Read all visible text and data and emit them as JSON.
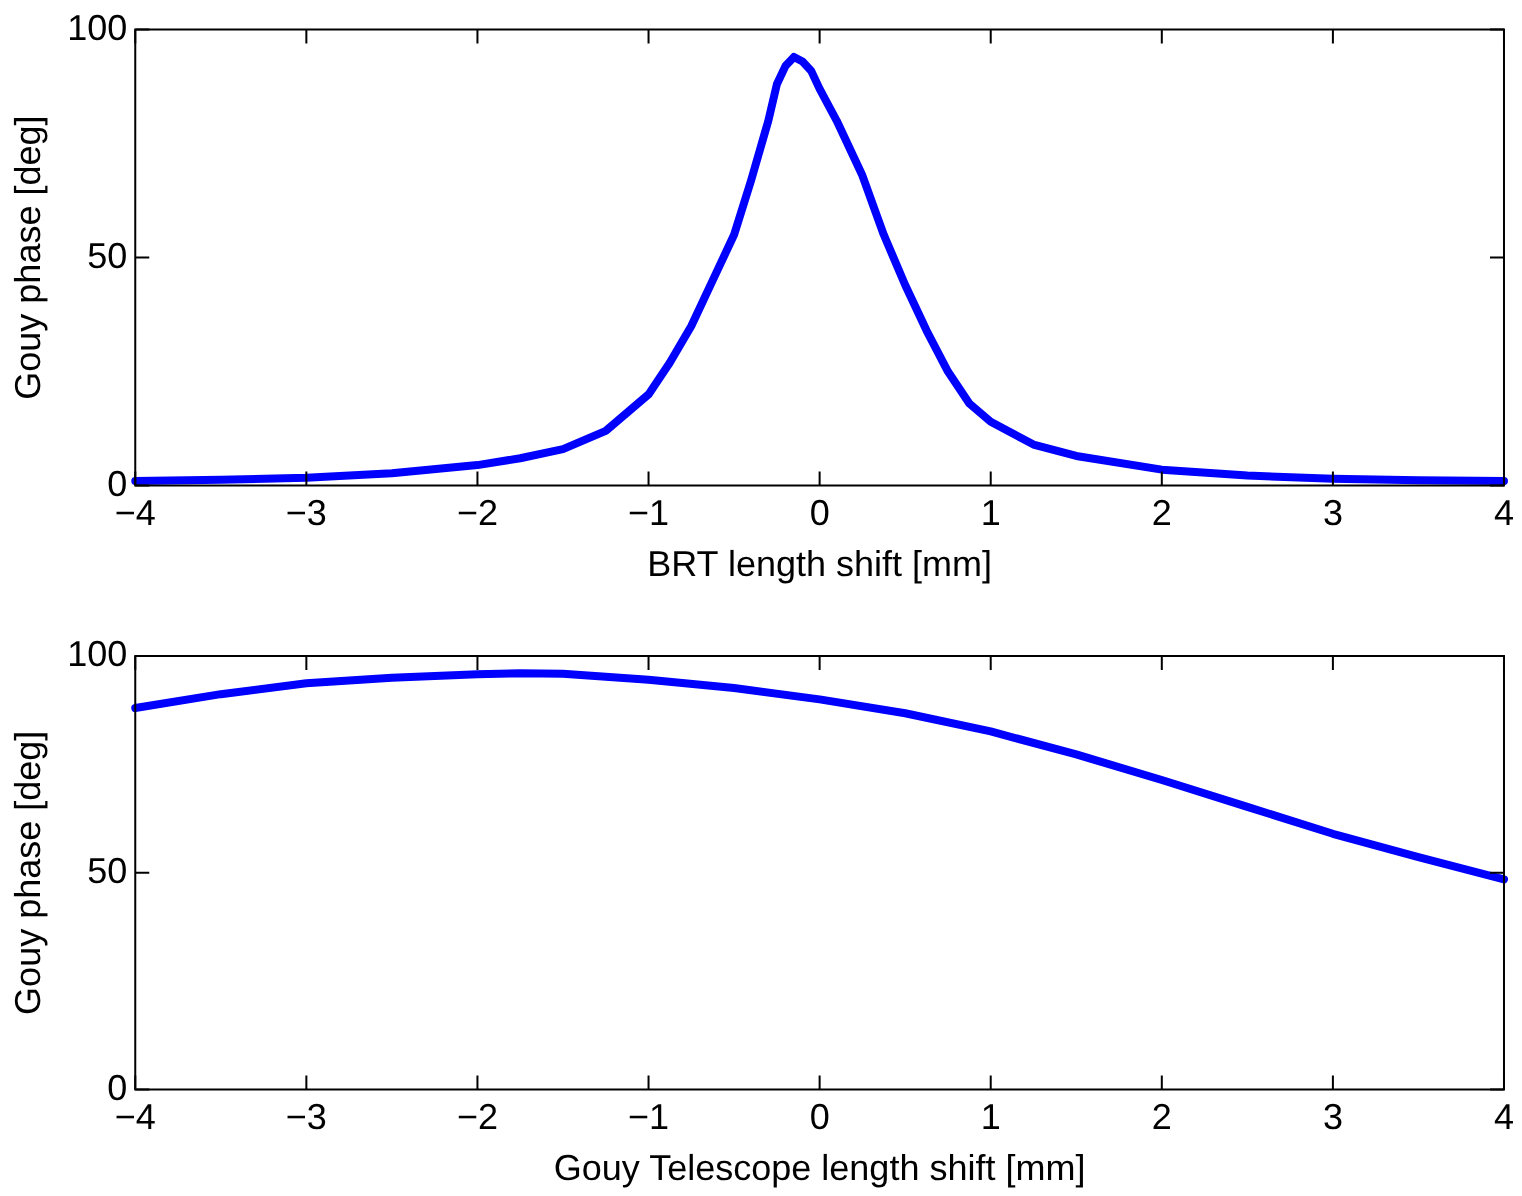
{
  "chart_data": [
    {
      "type": "line",
      "xlabel": "BRT length shift [mm]",
      "ylabel": "Gouy phase [deg]",
      "xlim": [
        -4,
        4
      ],
      "ylim": [
        0,
        100
      ],
      "xticks": [
        -4,
        -3,
        -2,
        -1,
        0,
        1,
        2,
        3,
        4
      ],
      "yticks": [
        0,
        50,
        100
      ],
      "series": [
        {
          "color": "#0000ff",
          "x": [
            -4,
            -3.5,
            -3,
            -2.5,
            -2,
            -1.75,
            -1.5,
            -1.25,
            -1,
            -0.875,
            -0.75,
            -0.625,
            -0.5,
            -0.4,
            -0.3,
            -0.25,
            -0.2,
            -0.15,
            -0.1,
            -0.05,
            0,
            0.1,
            0.25,
            0.375,
            0.5,
            0.625,
            0.75,
            0.875,
            1,
            1.25,
            1.5,
            2,
            2.5,
            3,
            3.5,
            4
          ],
          "values": [
            1,
            1.3,
            1.7,
            2.7,
            4.5,
            6,
            8,
            12,
            20,
            27,
            35,
            45,
            55,
            67,
            80,
            88,
            92,
            94,
            93,
            91,
            87,
            80,
            68,
            55,
            44,
            34,
            25,
            18,
            14,
            9,
            6.5,
            3.5,
            2.2,
            1.5,
            1.2,
            1
          ]
        }
      ]
    },
    {
      "type": "line",
      "xlabel": "Gouy Telescope length shift [mm]",
      "ylabel": "Gouy phase [deg]",
      "xlim": [
        -4,
        4
      ],
      "ylim": [
        0,
        100
      ],
      "xticks": [
        -4,
        -3,
        -2,
        -1,
        0,
        1,
        2,
        3,
        4
      ],
      "yticks": [
        0,
        50,
        100
      ],
      "series": [
        {
          "color": "#0000ff",
          "x": [
            -4,
            -3.5,
            -3,
            -2.5,
            -2,
            -1.75,
            -1.5,
            -1,
            -0.5,
            0,
            0.5,
            1,
            1.5,
            2,
            2.5,
            3,
            3.5,
            4
          ],
          "values": [
            88,
            91.2,
            93.7,
            95,
            95.8,
            96,
            95.9,
            94.5,
            92.6,
            90,
            86.8,
            82.6,
            77.3,
            71.4,
            65.2,
            59,
            53.6,
            48.5
          ]
        }
      ]
    }
  ]
}
